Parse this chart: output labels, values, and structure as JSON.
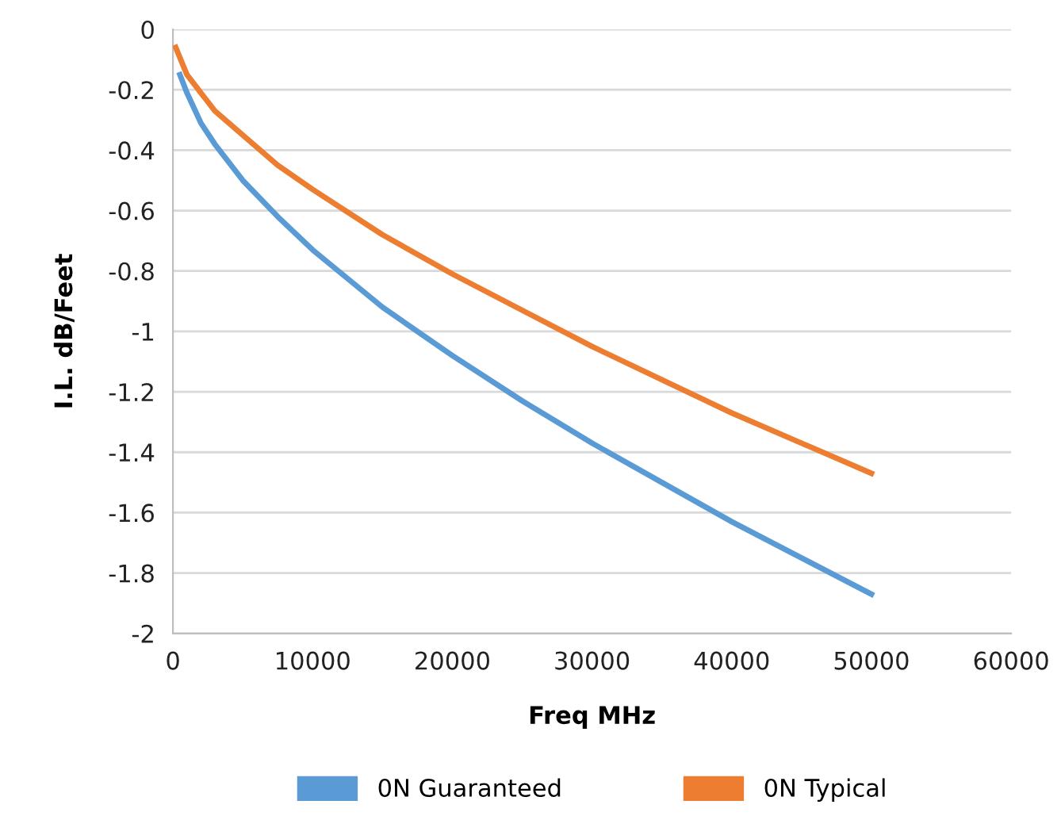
{
  "chart_data": {
    "type": "line",
    "xlabel": "Freq MHz",
    "ylabel": "I.L. dB/Feet",
    "xlim": [
      0,
      60000
    ],
    "xticks": [
      0,
      10000,
      20000,
      30000,
      40000,
      50000,
      60000
    ],
    "ylim": [
      -2,
      0
    ],
    "yticks": [
      0,
      -0.2,
      -0.4,
      -0.6,
      -0.8,
      -1,
      -1.2,
      -1.4,
      -1.6,
      -1.8,
      -2
    ],
    "grid": "y",
    "legend": "bottom",
    "marker": "none",
    "line_style": "solid",
    "series": [
      {
        "name": "0N Guaranteed",
        "color": "#5b9bd5",
        "x": [
          500,
          1000,
          2000,
          3000,
          5000,
          7500,
          10000,
          15000,
          20000,
          25000,
          30000,
          35000,
          40000,
          45000,
          50000
        ],
        "values": [
          -0.15,
          -0.21,
          -0.31,
          -0.38,
          -0.5,
          -0.62,
          -0.73,
          -0.92,
          -1.08,
          -1.23,
          -1.37,
          -1.5,
          -1.63,
          -1.75,
          -1.87
        ]
      },
      {
        "name": "0N Typical",
        "color": "#ed7d31",
        "x": [
          200,
          1000,
          2000,
          3000,
          5000,
          7500,
          10000,
          15000,
          20000,
          25000,
          30000,
          35000,
          40000,
          45000,
          50000
        ],
        "values": [
          -0.06,
          -0.15,
          -0.21,
          -0.27,
          -0.35,
          -0.45,
          -0.53,
          -0.68,
          -0.81,
          -0.93,
          -1.05,
          -1.16,
          -1.27,
          -1.37,
          -1.47
        ]
      }
    ]
  }
}
